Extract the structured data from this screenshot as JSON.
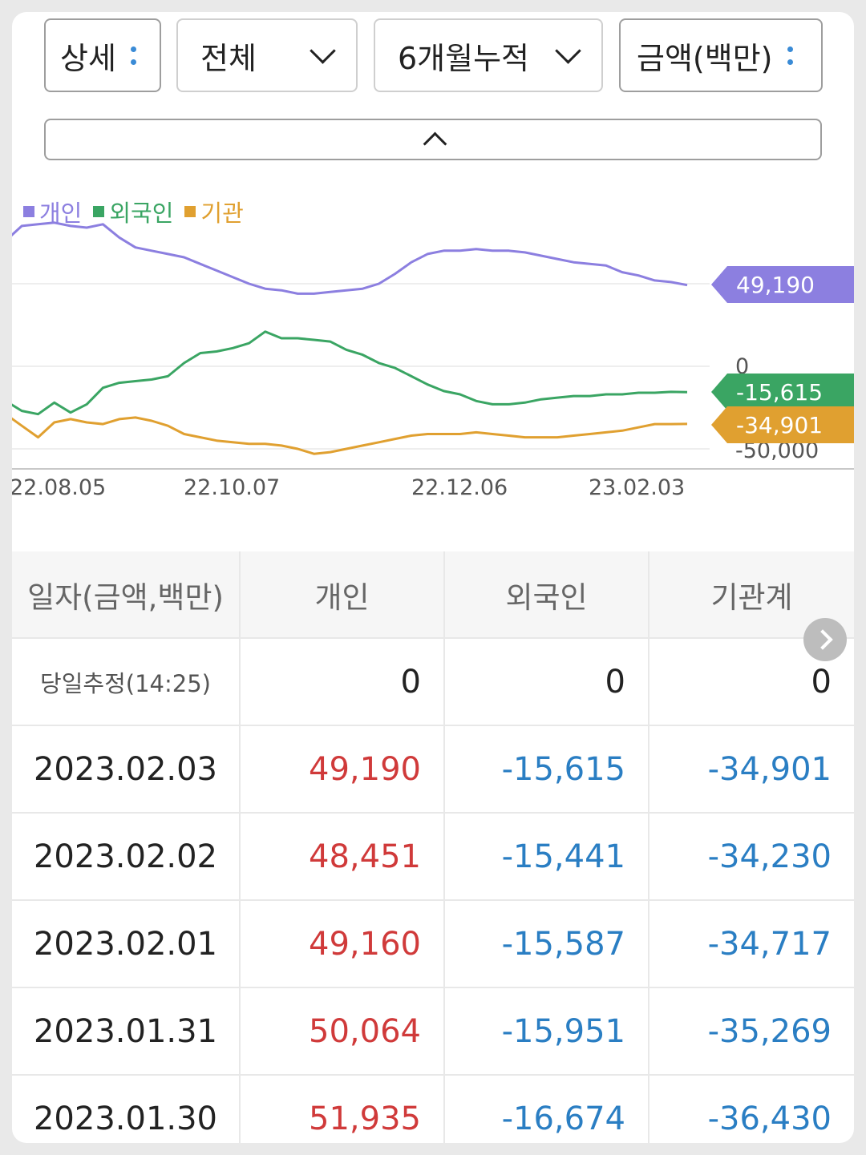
{
  "filters": {
    "detail": "상세",
    "scope": "전체",
    "period": "6개월누적",
    "unit": "금액(백만)"
  },
  "legend": [
    {
      "label": "개인",
      "color": "#8c7fe0"
    },
    {
      "label": "외국인",
      "color": "#3aa563"
    },
    {
      "label": "기관",
      "color": "#e0a030"
    }
  ],
  "chart_data": {
    "type": "line",
    "x_ticks": [
      "22.08.05",
      "22.10.07",
      "22.12.06",
      "23.02.03"
    ],
    "y_ticks": [
      "0",
      "-50,000"
    ],
    "ylim": [
      -50000,
      100000
    ],
    "series": [
      {
        "name": "개인",
        "color": "#8c7fe0",
        "values": [
          76000,
          85000,
          86000,
          87000,
          85000,
          84000,
          86000,
          78000,
          72000,
          70000,
          68000,
          66000,
          62000,
          58000,
          54000,
          50000,
          47000,
          46000,
          44000,
          44000,
          45000,
          46000,
          47000,
          50000,
          56000,
          63000,
          68000,
          70000,
          70000,
          71000,
          70000,
          70000,
          69000,
          67000,
          65000,
          63000,
          62000,
          61000,
          57000,
          55000,
          52000,
          51000,
          49190
        ]
      },
      {
        "name": "외국인",
        "color": "#3aa563",
        "values": [
          -21000,
          -27000,
          -29000,
          -22000,
          -28000,
          -23000,
          -13000,
          -10000,
          -9000,
          -8000,
          -6000,
          2000,
          8000,
          9000,
          11000,
          14000,
          21000,
          17000,
          17000,
          16000,
          15000,
          10000,
          7000,
          2000,
          -1000,
          -6000,
          -11000,
          -15000,
          -17000,
          -21000,
          -23000,
          -23000,
          -22000,
          -20000,
          -19000,
          -18000,
          -18000,
          -17000,
          -17000,
          -16000,
          -16000,
          -15500,
          -15615
        ]
      },
      {
        "name": "기관",
        "color": "#e0a030",
        "values": [
          -29000,
          -36000,
          -43000,
          -34000,
          -32000,
          -34000,
          -35000,
          -32000,
          -31000,
          -33000,
          -36000,
          -41000,
          -43000,
          -45000,
          -46000,
          -47000,
          -47000,
          -48000,
          -50000,
          -53000,
          -52000,
          -50000,
          -48000,
          -46000,
          -44000,
          -42000,
          -41000,
          -41000,
          -41000,
          -40000,
          -41000,
          -42000,
          -43000,
          -43000,
          -43000,
          -42000,
          -41000,
          -40000,
          -39000,
          -37000,
          -35000,
          -35000,
          -34901
        ]
      }
    ],
    "end_labels": [
      {
        "text": "49,190",
        "color": "#8c7fe0"
      },
      {
        "text": "-15,615",
        "color": "#3aa563"
      },
      {
        "text": "-34,901",
        "color": "#e0a030"
      }
    ]
  },
  "table": {
    "headers": [
      "일자(금액,백만)",
      "개인",
      "외국인",
      "기관계"
    ],
    "today": {
      "label": "당일추정(14:25)",
      "values": [
        "0",
        "0",
        "0"
      ]
    },
    "rows": [
      {
        "date": "2023.02.03",
        "values": [
          "49,190",
          "-15,615",
          "-34,901"
        ]
      },
      {
        "date": "2023.02.02",
        "values": [
          "48,451",
          "-15,441",
          "-34,230"
        ]
      },
      {
        "date": "2023.02.01",
        "values": [
          "49,160",
          "-15,587",
          "-34,717"
        ]
      },
      {
        "date": "2023.01.31",
        "values": [
          "50,064",
          "-15,951",
          "-35,269"
        ]
      },
      {
        "date": "2023.01.30",
        "values": [
          "51,935",
          "-16,674",
          "-36,430"
        ]
      }
    ]
  }
}
